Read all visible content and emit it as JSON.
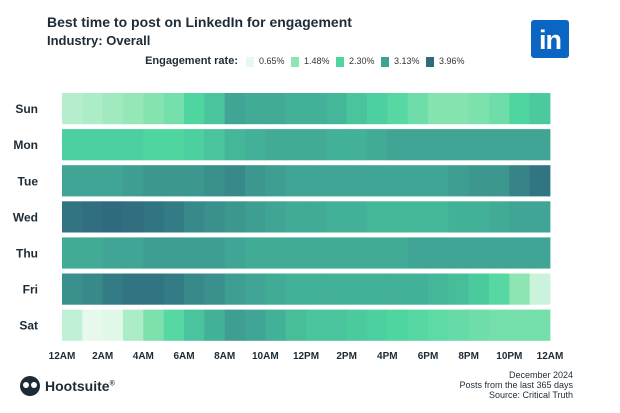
{
  "title": "Best time to post on LinkedIn for engagement",
  "subtitle": "Industry: Overall",
  "logo_text": "in",
  "legend": {
    "label": "Engagement rate:",
    "items": [
      {
        "label": "0.65%",
        "value": 0.65,
        "color": "#e6f9ec"
      },
      {
        "label": "1.48%",
        "value": 1.48,
        "color": "#8ee5b3"
      },
      {
        "label": "2.30%",
        "value": 2.3,
        "color": "#4fd6a0"
      },
      {
        "label": "3.13%",
        "value": 3.13,
        "color": "#3fa394"
      },
      {
        "label": "3.96%",
        "value": 3.96,
        "color": "#2f6a7e"
      }
    ]
  },
  "chart_data": {
    "type": "heatmap",
    "title": "Best time to post on LinkedIn for engagement",
    "subtitle": "Industry: Overall",
    "rows": [
      "Sun",
      "Mon",
      "Tue",
      "Wed",
      "Thu",
      "Fri",
      "Sat"
    ],
    "x_ticks": [
      "12AM",
      "2AM",
      "4AM",
      "6AM",
      "8AM",
      "10AM",
      "12PM",
      "2PM",
      "4PM",
      "6PM",
      "8PM",
      "10PM",
      "12AM"
    ],
    "x_unit": "hour of day (0-24)",
    "value_unit": "engagement rate (%)",
    "scale": [
      0.65,
      1.48,
      2.3,
      3.13,
      3.96
    ],
    "values": [
      [
        1.1,
        1.2,
        1.3,
        1.4,
        1.6,
        1.8,
        2.3,
        2.6,
        3.1,
        3.0,
        3.0,
        2.9,
        2.9,
        2.8,
        2.6,
        2.4,
        2.2,
        1.9,
        1.6,
        1.6,
        1.7,
        1.9,
        2.3,
        2.5
      ],
      [
        2.4,
        2.4,
        2.4,
        2.4,
        2.3,
        2.3,
        2.4,
        2.6,
        2.8,
        2.9,
        3.0,
        3.0,
        3.0,
        2.9,
        2.9,
        3.0,
        3.1,
        3.1,
        3.1,
        3.1,
        3.1,
        3.1,
        3.1,
        3.1
      ],
      [
        3.1,
        3.1,
        3.1,
        3.2,
        3.3,
        3.3,
        3.3,
        3.4,
        3.5,
        3.3,
        3.2,
        3.1,
        3.1,
        3.1,
        3.1,
        3.1,
        3.1,
        3.1,
        3.1,
        3.2,
        3.3,
        3.3,
        3.6,
        3.8
      ],
      [
        3.8,
        3.9,
        3.96,
        3.9,
        3.8,
        3.7,
        3.5,
        3.4,
        3.3,
        3.2,
        3.1,
        3.0,
        3.0,
        2.9,
        2.9,
        2.8,
        2.8,
        2.8,
        2.8,
        2.9,
        2.9,
        3.0,
        3.1,
        3.1
      ],
      [
        3.0,
        3.0,
        3.1,
        3.1,
        3.2,
        3.2,
        3.2,
        3.2,
        3.1,
        3.0,
        3.0,
        3.0,
        3.0,
        3.0,
        3.0,
        3.0,
        3.0,
        3.1,
        3.1,
        3.1,
        3.1,
        3.1,
        3.1,
        3.1
      ],
      [
        3.4,
        3.5,
        3.7,
        3.8,
        3.8,
        3.7,
        3.5,
        3.4,
        3.2,
        3.1,
        3.0,
        2.9,
        2.9,
        2.9,
        2.9,
        2.9,
        2.9,
        2.9,
        2.8,
        2.7,
        2.5,
        2.2,
        1.5,
        0.9
      ],
      [
        1.0,
        0.65,
        0.7,
        1.2,
        1.7,
        2.2,
        2.6,
        2.9,
        3.2,
        3.1,
        2.9,
        2.7,
        2.6,
        2.6,
        2.5,
        2.4,
        2.3,
        2.2,
        2.1,
        2.0,
        1.9,
        1.8,
        1.8,
        1.8
      ]
    ]
  },
  "brand": {
    "name": "Hootsuite",
    "mark": "®"
  },
  "footer": {
    "date": "December 2024",
    "note": "Posts from the last 365 days",
    "source": "Source: Critical Truth"
  }
}
